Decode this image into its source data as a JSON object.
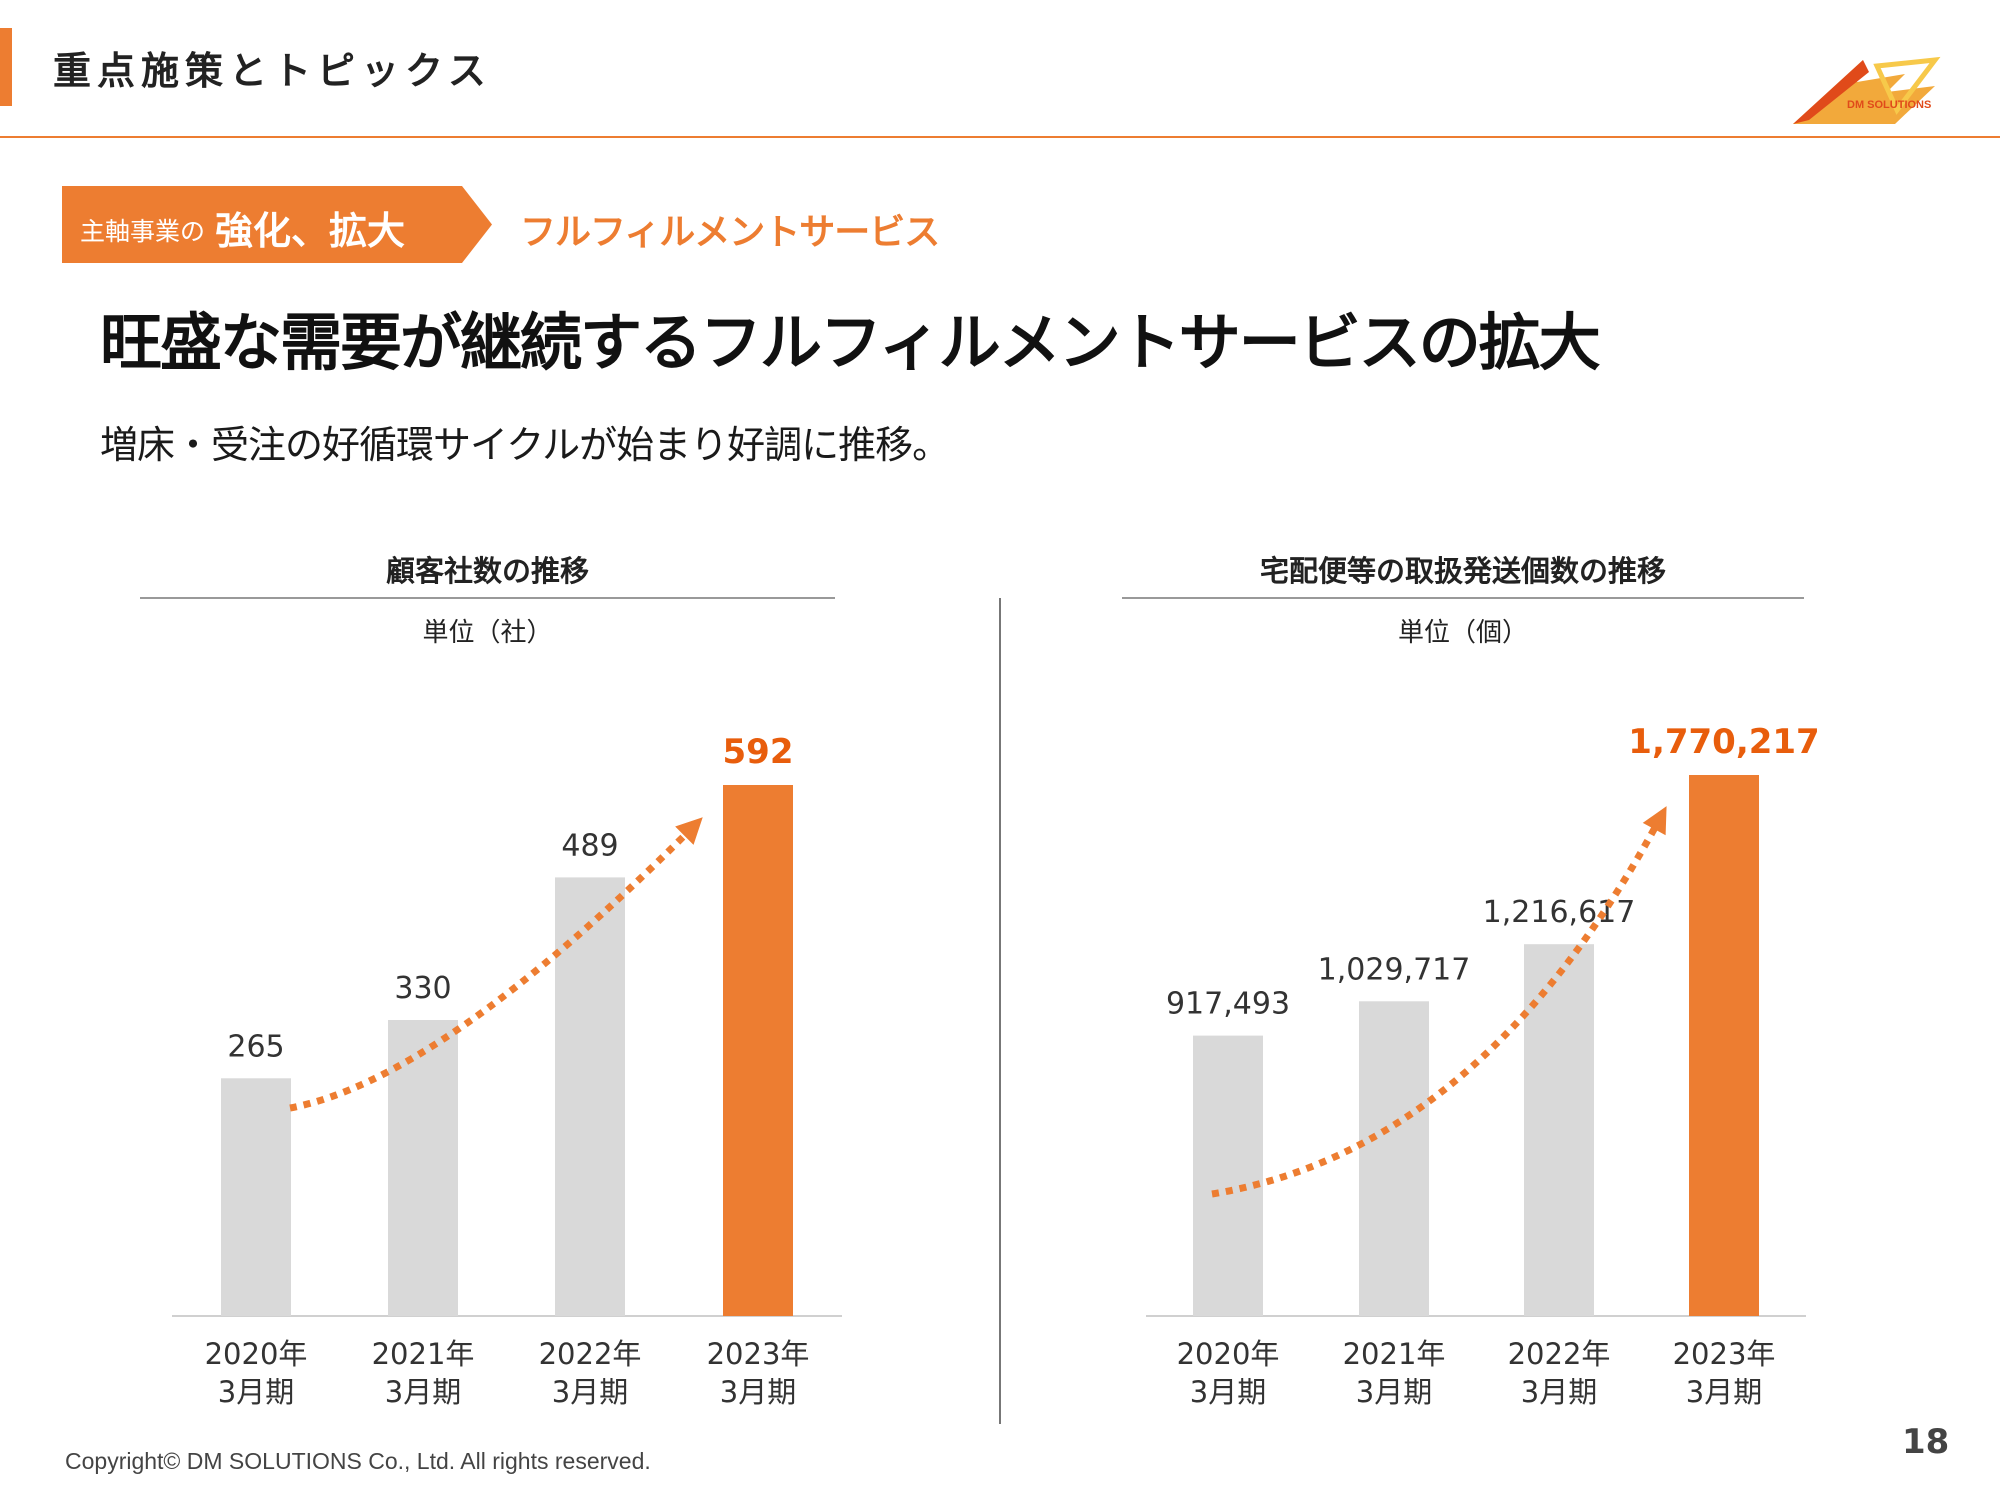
{
  "header": {
    "title": "重点施策とトピックス",
    "logo_text": "DM SOLUTIONS"
  },
  "ribbon": {
    "prefix": "主軸事業の",
    "emphasis": "強化、拡大",
    "tag": "フルフィルメントサービス"
  },
  "main": {
    "title": "旺盛な需要が継続するフルフィルメントサービスの拡大",
    "subtitle": "増床・受注の好循環サイクルが始まり好調に推移。"
  },
  "footer": {
    "copyright": "Copyright© DM SOLUTIONS Co., Ltd. All rights reserved.",
    "page_number": "18"
  },
  "colors": {
    "accent": "#ED7D31",
    "bar_gray": "#D9D9D9",
    "bar_highlight": "#ED7D31",
    "highlight_label": "#E85D0C"
  },
  "chart_data": [
    {
      "type": "bar",
      "title": "顧客社数の推移",
      "unit_label": "単位（社）",
      "categories": [
        "2020年\n3月期",
        "2021年\n3月期",
        "2022年\n3月期",
        "2023年\n3月期"
      ],
      "category_lines": [
        [
          "2020年",
          "3月期"
        ],
        [
          "2021年",
          "3月期"
        ],
        [
          "2022年",
          "3月期"
        ],
        [
          "2023年",
          "3月期"
        ]
      ],
      "values": [
        265,
        330,
        489,
        592
      ],
      "value_labels": [
        "265",
        "330",
        "489",
        "592"
      ],
      "highlight_index": 3,
      "trend_arrow": true,
      "ylim": [
        0,
        620
      ],
      "xlabel": "",
      "ylabel": "",
      "grid": false
    },
    {
      "type": "bar",
      "title": "宅配便等の取扱発送個数の推移",
      "unit_label": "単位（個）",
      "categories": [
        "2020年\n3月期",
        "2021年\n3月期",
        "2022年\n3月期",
        "2023年\n3月期"
      ],
      "category_lines": [
        [
          "2020年",
          "3月期"
        ],
        [
          "2021年",
          "3月期"
        ],
        [
          "2022年",
          "3月期"
        ],
        [
          "2023年",
          "3月期"
        ]
      ],
      "values": [
        917493,
        1029717,
        1216617,
        1770217
      ],
      "value_labels": [
        "917,493",
        "1,029,717",
        "1,216,617",
        "1,770,217"
      ],
      "highlight_index": 3,
      "trend_arrow": true,
      "ylim": [
        0,
        1850000
      ],
      "xlabel": "",
      "ylabel": "",
      "grid": false
    }
  ]
}
